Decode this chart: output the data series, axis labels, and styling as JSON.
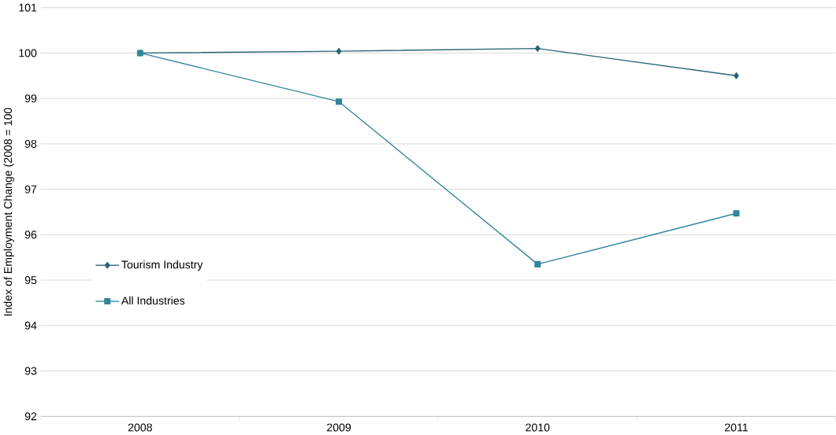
{
  "chart_data": {
    "type": "line",
    "ylabel": "Index of Employment Change (2008 = 100",
    "categories": [
      "2008",
      "2009",
      "2010",
      "2011"
    ],
    "series": [
      {
        "name": "Tourism Industry",
        "color": "#276473",
        "marker": "diamond",
        "values": [
          100,
          100.04,
          100.1,
          99.5
        ]
      },
      {
        "name": "All Industries",
        "color": "#31869b",
        "marker": "square",
        "values": [
          100,
          98.93,
          95.35,
          96.47
        ]
      }
    ],
    "ylim": [
      92,
      101
    ],
    "yticks": [
      92,
      93,
      94,
      95,
      96,
      97,
      98,
      99,
      100,
      101
    ],
    "grid": "y",
    "legend": "left",
    "line_style": "solid"
  }
}
